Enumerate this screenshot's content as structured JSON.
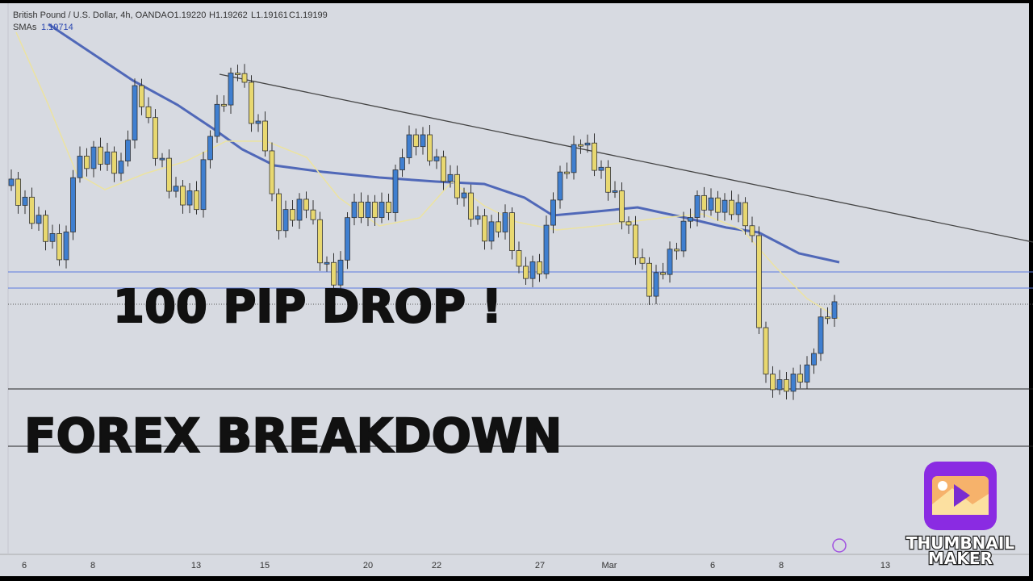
{
  "header": {
    "symbol": "British Pound / U.S. Dollar, 4h, OANDA",
    "open": "O1.19220",
    "high": "H1.19262",
    "low": "L1.19161",
    "close": "C1.19199",
    "indicator": "SMAs",
    "sma_value": "1.19714"
  },
  "x_axis": {
    "labels": [
      "6",
      "8",
      "13",
      "15",
      "20",
      "22",
      "27",
      "Mar",
      "6",
      "8",
      "13"
    ]
  },
  "overlay": {
    "headline": "100 PIP DROP !",
    "title": "FOREX BREAKDOWN"
  },
  "watermark": {
    "line1": "THUMBNAIL",
    "line2": "MAKER"
  }
}
